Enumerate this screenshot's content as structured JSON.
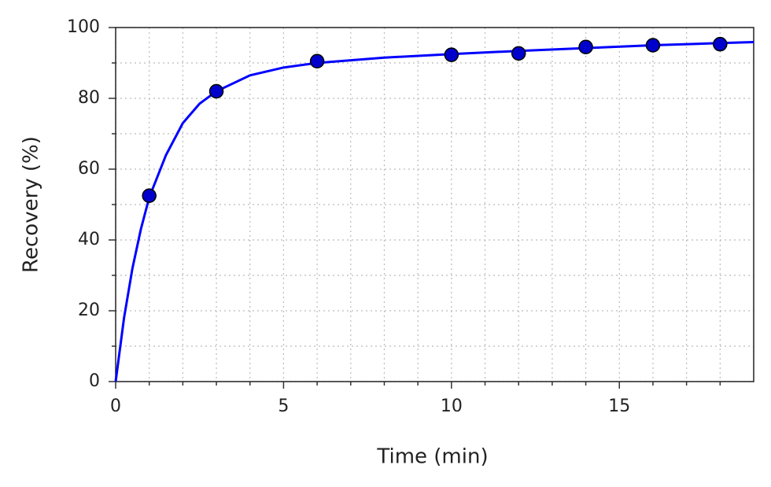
{
  "chart_data": {
    "type": "line",
    "xlabel": "Time (min)",
    "ylabel": "Recovery (%)",
    "xlim": [
      0,
      19
    ],
    "ylim": [
      0,
      100
    ],
    "xticks": [
      0,
      5,
      10,
      15
    ],
    "yticks": [
      0,
      20,
      40,
      60,
      80,
      100
    ],
    "xminorticks": [
      1,
      2,
      3,
      4,
      6,
      7,
      8,
      9,
      11,
      12,
      13,
      14,
      16,
      17,
      18
    ],
    "yminorticks": [
      10,
      30,
      50,
      70,
      90
    ],
    "grid": true,
    "series": [
      {
        "type": "line",
        "color": "#0000ff",
        "x": [
          0,
          0.25,
          0.5,
          0.75,
          1,
          1.5,
          2,
          2.5,
          3,
          4,
          5,
          6,
          8,
          10,
          12,
          14,
          16,
          18,
          19
        ],
        "values": [
          0,
          18,
          32,
          43,
          52,
          64,
          73,
          78.5,
          82,
          86.5,
          88.7,
          90,
          91.5,
          92.5,
          93.4,
          94.2,
          95,
          95.6,
          95.9
        ]
      },
      {
        "type": "scatter",
        "color": "#0000cc",
        "x": [
          1,
          3,
          6,
          10,
          12,
          14,
          16,
          18
        ],
        "values": [
          52.5,
          82,
          90.5,
          92.3,
          92.7,
          94.5,
          95,
          95.3
        ]
      }
    ]
  }
}
